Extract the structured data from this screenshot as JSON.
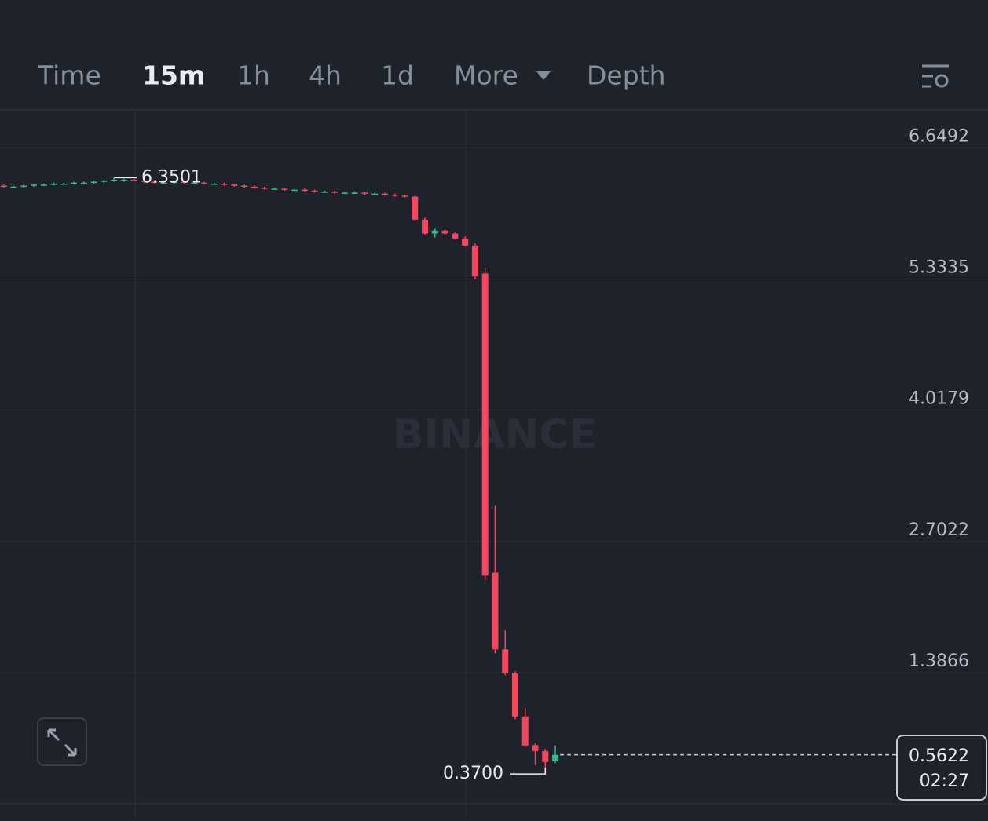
{
  "tabs": [
    "Time",
    "15m",
    "1h",
    "4h",
    "1d",
    "More",
    "Depth"
  ],
  "active_tab": 1,
  "watermark": "BINANCE",
  "chart_data": {
    "type": "candlestick",
    "up_color": "#2ebd85",
    "down_color": "#f6465d",
    "ylim": [
      -0.07,
      7.03
    ],
    "yticks": [
      6.6492,
      5.3335,
      4.0179,
      2.7022,
      1.3866
    ],
    "grid": true,
    "open": [
      6.27,
      6.26,
      6.26,
      6.27,
      6.28,
      6.28,
      6.29,
      6.29,
      6.3,
      6.3,
      6.31,
      6.32,
      6.33,
      6.33,
      6.32,
      6.31,
      6.3,
      6.3,
      6.31,
      6.3,
      6.3,
      6.29,
      6.29,
      6.28,
      6.27,
      6.26,
      6.25,
      6.24,
      6.24,
      6.23,
      6.23,
      6.22,
      6.21,
      6.21,
      6.2,
      6.2,
      6.2,
      6.19,
      6.19,
      6.18,
      6.17,
      6.16,
      5.93,
      5.79,
      5.82,
      5.79,
      5.74,
      5.67,
      5.39,
      2.39,
      1.62,
      1.38,
      0.947,
      0.66,
      0.6,
      0.5
    ],
    "high": [
      6.28,
      6.27,
      6.28,
      6.29,
      6.29,
      6.3,
      6.3,
      6.31,
      6.31,
      6.32,
      6.33,
      6.3501,
      6.34,
      6.34,
      6.33,
      6.32,
      6.31,
      6.32,
      6.32,
      6.31,
      6.31,
      6.3,
      6.3,
      6.29,
      6.28,
      6.27,
      6.26,
      6.25,
      6.25,
      6.24,
      6.24,
      6.23,
      6.22,
      6.22,
      6.21,
      6.21,
      6.21,
      6.2,
      6.2,
      6.19,
      6.18,
      6.17,
      5.95,
      5.84,
      5.83,
      5.8,
      5.76,
      5.69,
      5.45,
      3.06,
      1.81,
      1.4,
      1.03,
      0.68,
      0.62,
      0.656
    ],
    "low": [
      6.25,
      6.25,
      6.25,
      6.26,
      6.27,
      6.27,
      6.28,
      6.28,
      6.29,
      6.29,
      6.3,
      6.31,
      6.31,
      6.31,
      6.3,
      6.29,
      6.29,
      6.29,
      6.29,
      6.29,
      6.28,
      6.28,
      6.27,
      6.26,
      6.25,
      6.24,
      6.23,
      6.23,
      6.22,
      6.22,
      6.21,
      6.2,
      6.2,
      6.19,
      6.19,
      6.19,
      6.18,
      6.18,
      6.17,
      6.16,
      6.15,
      5.92,
      5.78,
      5.75,
      5.78,
      5.73,
      5.66,
      5.33,
      2.31,
      1.58,
      1.36,
      0.92,
      0.64,
      0.46,
      0.37,
      0.48
    ],
    "close": [
      6.26,
      6.26,
      6.27,
      6.28,
      6.28,
      6.29,
      6.29,
      6.3,
      6.3,
      6.31,
      6.32,
      6.33,
      6.33,
      6.32,
      6.31,
      6.3,
      6.3,
      6.31,
      6.3,
      6.3,
      6.29,
      6.29,
      6.28,
      6.27,
      6.26,
      6.25,
      6.24,
      6.24,
      6.23,
      6.23,
      6.22,
      6.21,
      6.21,
      6.2,
      6.2,
      6.2,
      6.19,
      6.19,
      6.18,
      6.17,
      6.16,
      5.93,
      5.79,
      5.82,
      5.79,
      5.74,
      5.67,
      5.36,
      2.36,
      1.62,
      1.38,
      0.947,
      0.656,
      0.6,
      0.49,
      0.5622
    ],
    "high_label": 6.3501,
    "low_label": {
      "value": 0.37,
      "label": "0.3700"
    },
    "current_price": 0.5622,
    "countdown": "02:27"
  }
}
